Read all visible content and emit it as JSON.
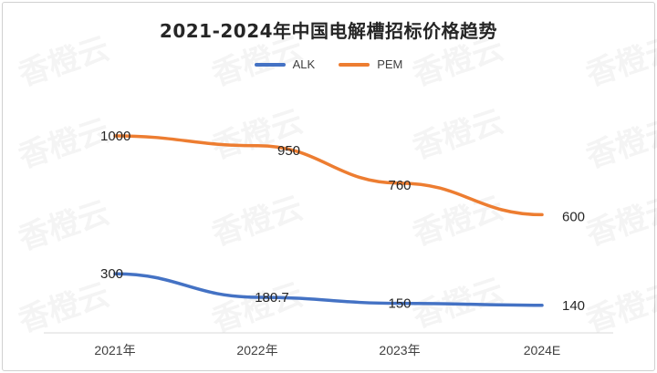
{
  "chart_data": {
    "type": "line",
    "title": "2021-2024年中国电解槽招标价格趋势",
    "categories": [
      "2021年",
      "2022年",
      "2023年",
      "2024E"
    ],
    "series": [
      {
        "name": "ALK",
        "values": [
          300,
          180.7,
          150,
          140
        ],
        "color": "#4472C4"
      },
      {
        "name": "PEM",
        "values": [
          1000,
          950,
          760,
          600
        ],
        "color": "#ED7D31"
      }
    ],
    "ylim": [
      0,
      1250
    ],
    "grid": false,
    "legend": "top-center",
    "xlabel": "",
    "ylabel": ""
  },
  "watermark": "香橙云"
}
